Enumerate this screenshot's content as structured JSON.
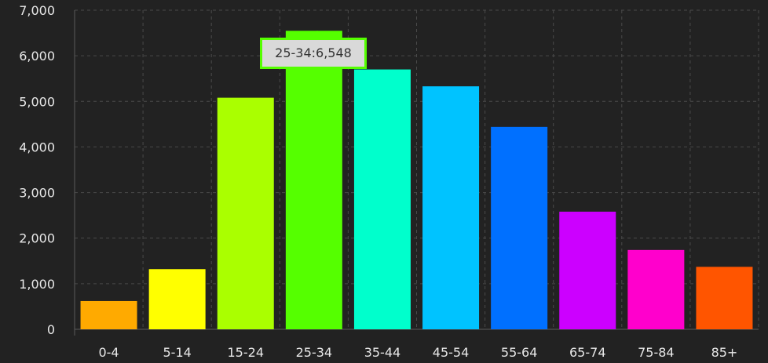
{
  "chart_data": {
    "type": "bar",
    "categories": [
      "0-4",
      "5-14",
      "15-24",
      "25-34",
      "35-44",
      "45-54",
      "55-64",
      "65-74",
      "75-84",
      "85+"
    ],
    "values": [
      620,
      1320,
      5080,
      6548,
      5700,
      5330,
      4440,
      2580,
      1740,
      1370
    ],
    "colors": [
      "#ffaa00",
      "#ffff00",
      "#aaff00",
      "#55ff00",
      "#00ffcc",
      "#00c3ff",
      "#0070ff",
      "#cc00ff",
      "#ff00cc",
      "#ff5500"
    ],
    "ylim": [
      0,
      7000
    ],
    "yticks": [
      "0",
      "1,000",
      "2,000",
      "3,000",
      "4,000",
      "5,000",
      "6,000",
      "7,000"
    ],
    "grid": true,
    "tooltip": "25-34:6,548"
  }
}
